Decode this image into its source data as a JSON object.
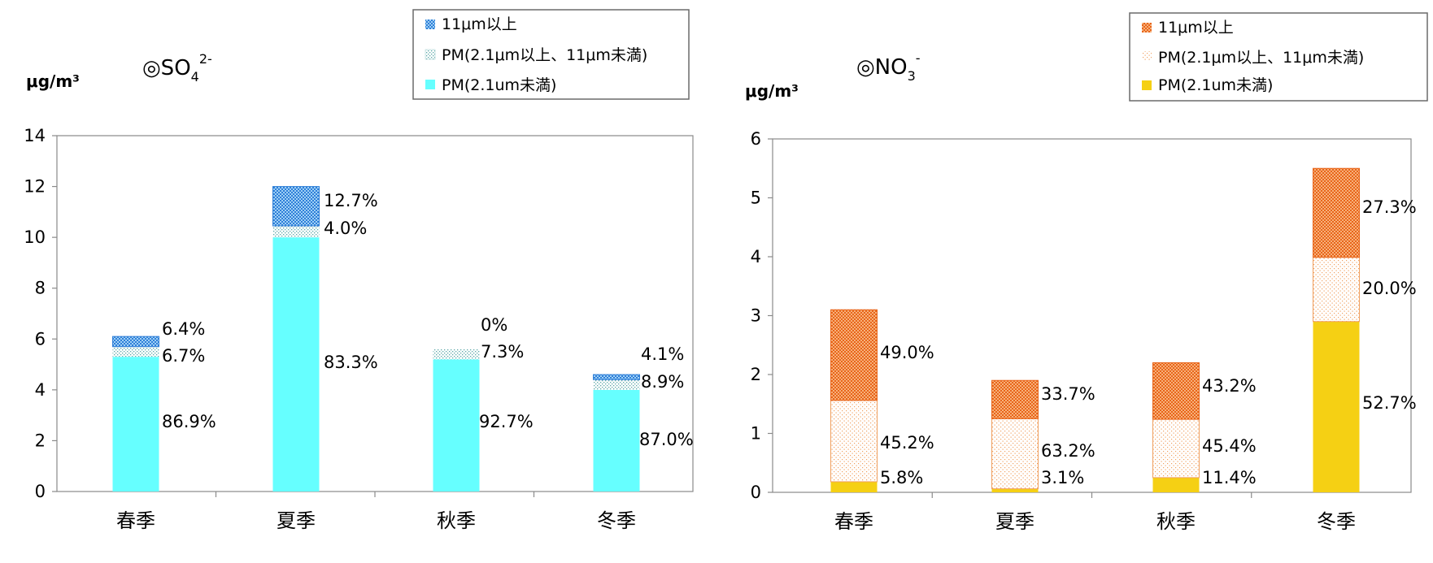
{
  "chart_data": [
    {
      "type": "bar",
      "stacked": true,
      "title": "◎SO₄²⁻",
      "title_main": "◎SO",
      "title_sub": "4",
      "title_sup": "2-",
      "ylabel": "μg/m³",
      "ylim": [
        0,
        14
      ],
      "yticks": [
        0,
        2,
        4,
        6,
        8,
        10,
        12,
        14
      ],
      "categories": [
        "春季",
        "夏季",
        "秋季",
        "冬季"
      ],
      "legend_position": "top-right",
      "series": [
        {
          "name": "PM(2.1um未満)",
          "pattern": "solid",
          "color": "#66ffff",
          "values": [
            5.3,
            10.0,
            5.2,
            4.0
          ],
          "labels": [
            "86.9%",
            "83.3%",
            "92.7%",
            "87.0%"
          ]
        },
        {
          "name": "PM(2.1μm以上、11μm未満)",
          "pattern": "dots",
          "color": "#66cccc",
          "values": [
            0.4,
            0.45,
            0.4,
            0.4
          ],
          "labels": [
            "6.7%",
            "4.0%",
            "7.3%",
            "8.9%"
          ]
        },
        {
          "name": "11μm以上",
          "pattern": "check",
          "color": "#3399dd",
          "values": [
            0.4,
            1.55,
            0.0,
            0.2
          ],
          "labels": [
            "6.4%",
            "12.7%",
            "0%",
            "4.1%"
          ]
        }
      ],
      "legend_order": [
        2,
        1,
        0
      ]
    },
    {
      "type": "bar",
      "stacked": true,
      "title": "◎NO₃⁻",
      "title_main": "◎NO",
      "title_sub": "3",
      "title_sup": "-",
      "ylabel": "μg/m³",
      "ylim": [
        0,
        6
      ],
      "yticks": [
        0,
        1,
        2,
        3,
        4,
        5,
        6
      ],
      "categories": [
        "春季",
        "夏季",
        "秋季",
        "冬季"
      ],
      "legend_position": "top-right",
      "series": [
        {
          "name": "PM(2.1um未満)",
          "pattern": "solid",
          "color": "#f5d014",
          "values": [
            0.18,
            0.06,
            0.25,
            2.9
          ],
          "labels": [
            "5.8%",
            "3.1%",
            "11.4%",
            "52.7%"
          ]
        },
        {
          "name": "PM(2.1μm以上、11μm未満)",
          "pattern": "dots",
          "color": "#f4b183",
          "values": [
            1.38,
            1.19,
            0.99,
            1.09
          ],
          "labels": [
            "45.2%",
            "63.2%",
            "45.4%",
            "20.0%"
          ]
        },
        {
          "name": "11μm以上",
          "pattern": "check",
          "color": "#ed7d31",
          "values": [
            1.54,
            0.65,
            0.96,
            1.51
          ],
          "labels": [
            "49.0%",
            "33.7%",
            "43.2%",
            "27.3%"
          ]
        }
      ],
      "legend_order": [
        2,
        1,
        0
      ]
    }
  ]
}
